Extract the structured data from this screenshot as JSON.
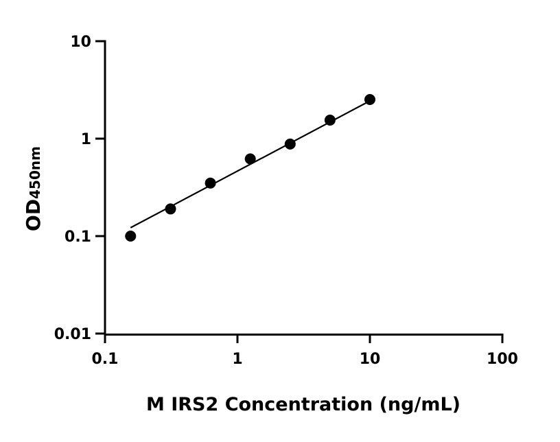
{
  "chart_data": {
    "type": "scatter",
    "title": "",
    "xlabel": "M IRS2 Concentration (ng/mL)",
    "ylabel": "OD",
    "ylabel_subscript": "450nm",
    "x_scale": "log",
    "y_scale": "log",
    "xlim": [
      0.1,
      100
    ],
    "ylim": [
      0.01,
      10
    ],
    "x_ticks": [
      0.1,
      1,
      10,
      100
    ],
    "x_tick_labels": [
      "0.1",
      "1",
      "10",
      "100"
    ],
    "y_ticks": [
      0.01,
      0.1,
      1,
      10
    ],
    "y_tick_labels": [
      "0.01",
      "0.1",
      "1",
      "10"
    ],
    "grid": false,
    "marker_color": "#000000",
    "series": [
      {
        "x": [
          0.156,
          0.3125,
          0.625,
          1.25,
          2.5,
          5,
          10
        ],
        "y": [
          0.1,
          0.19,
          0.35,
          0.62,
          0.88,
          1.55,
          2.52
        ]
      }
    ],
    "fit_line": {
      "x": [
        0.156,
        10
      ],
      "y": [
        0.122,
        2.44
      ]
    }
  }
}
